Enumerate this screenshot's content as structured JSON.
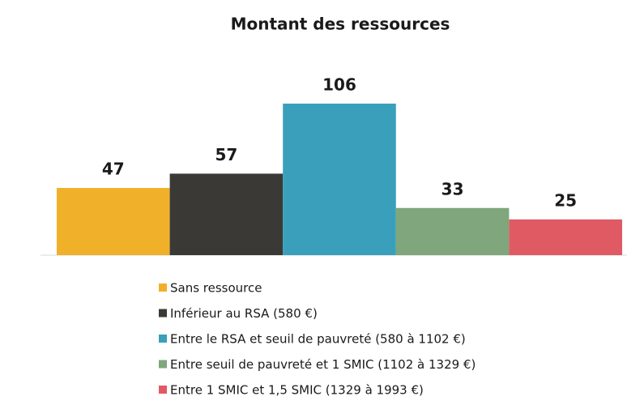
{
  "chart_data": {
    "type": "bar",
    "title": "Montant des ressources",
    "series": [
      {
        "name": "Sans ressource",
        "color": "#f0b02a",
        "values": [
          47
        ]
      },
      {
        "name": "Inférieur au RSA (580 €)",
        "color": "#3a3935",
        "values": [
          57
        ]
      },
      {
        "name": "Entre le RSA et seuil de pauvreté (580 à 1102 €)",
        "color": "#3a9fba",
        "values": [
          106
        ]
      },
      {
        "name": "Entre seuil de pauvreté et 1 SMIC (1102 à 1329 €)",
        "color": "#7fa67c",
        "values": [
          33
        ]
      },
      {
        "name": "Entre 1 SMIC et 1,5 SMIC (1329 à 1993 €)",
        "color": "#e05a64",
        "values": [
          25
        ]
      }
    ]
  }
}
